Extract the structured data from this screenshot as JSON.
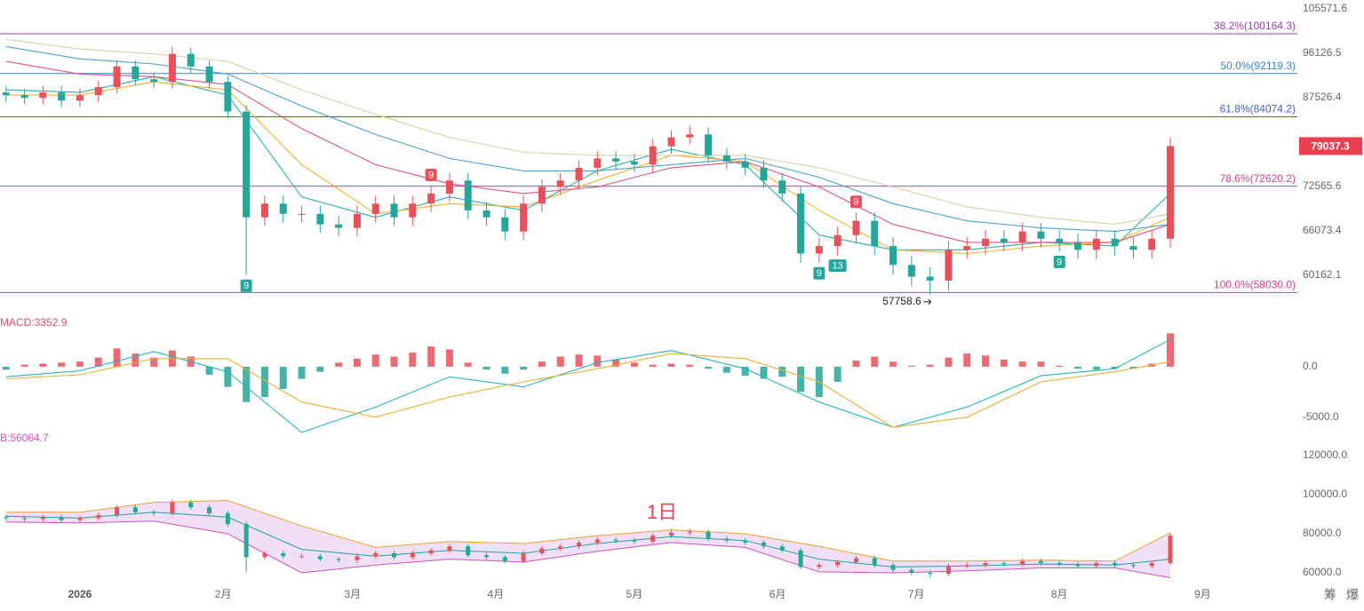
{
  "chart_data": [
    {
      "type": "candlestick",
      "log_scale": true,
      "up_color": "#e8505b",
      "down_color": "#26a69a",
      "xlim": [
        -17.3,
        263.5
      ],
      "ylim": [
        56880,
        107570
      ],
      "yticks": [
        105571.6,
        96126.5,
        87526.4,
        72565.6,
        66073.4,
        60162.1
      ],
      "x": [
        -16,
        -12,
        -8,
        -4,
        0,
        4,
        8,
        12,
        16,
        20,
        24,
        28,
        32,
        36,
        40,
        44,
        48,
        52,
        56,
        60,
        64,
        68,
        72,
        76,
        80,
        84,
        88,
        92,
        96,
        100,
        104,
        108,
        112,
        116,
        120,
        124,
        128,
        132,
        136,
        140,
        144,
        148,
        152,
        156,
        160,
        164,
        168,
        172,
        176,
        180,
        184,
        188,
        192,
        196,
        200,
        204,
        208,
        212,
        216,
        220,
        224,
        228,
        232,
        236
      ],
      "open": [
        88500,
        88000,
        87500,
        88500,
        87000,
        88000,
        89500,
        93500,
        91000,
        90500,
        96000,
        93500,
        90500,
        85000,
        68000,
        70000,
        68500,
        68500,
        67000,
        66500,
        68500,
        70000,
        68000,
        70000,
        71500,
        73500,
        69000,
        68000,
        66000,
        70000,
        72500,
        73500,
        75500,
        77000,
        76500,
        76000,
        79000,
        80500,
        81000,
        77500,
        76500,
        75500,
        73500,
        71500,
        63000,
        64000,
        65500,
        67500,
        64000,
        61500,
        60000,
        59500,
        63500,
        64000,
        65000,
        64500,
        66000,
        65000,
        64500,
        63500,
        65000,
        64000,
        63500,
        65000
      ],
      "high": [
        89700,
        89200,
        89700,
        89700,
        89200,
        90700,
        94700,
        94700,
        92200,
        97500,
        97200,
        94700,
        91700,
        86200,
        71200,
        71200,
        69700,
        69700,
        68200,
        69700,
        71200,
        71200,
        71200,
        72700,
        74700,
        74700,
        70200,
        69200,
        71200,
        73700,
        74700,
        76700,
        78200,
        78200,
        77700,
        80200,
        81700,
        82500,
        82200,
        78700,
        77700,
        76700,
        74700,
        72700,
        65200,
        66700,
        68700,
        68700,
        65200,
        62700,
        61200,
        64700,
        65200,
        66200,
        66200,
        67200,
        67200,
        66200,
        65700,
        66200,
        66200,
        65200,
        66200,
        80500
      ],
      "low": [
        86800,
        86300,
        86300,
        85800,
        85800,
        86800,
        88300,
        89800,
        89300,
        89300,
        92300,
        89300,
        83800,
        60200,
        66800,
        67300,
        67300,
        65800,
        65300,
        65300,
        67300,
        66800,
        66800,
        68800,
        70300,
        67800,
        66800,
        64800,
        64800,
        68800,
        71300,
        72300,
        74300,
        75300,
        74800,
        74800,
        77800,
        79300,
        76300,
        75300,
        74300,
        72300,
        70300,
        61800,
        61800,
        62800,
        64300,
        62800,
        60300,
        58800,
        57758.6,
        58300,
        62300,
        62800,
        63300,
        63300,
        63800,
        63300,
        62300,
        62300,
        62800,
        62300,
        62300,
        63800
      ],
      "close": [
        88000,
        87500,
        88500,
        87000,
        88000,
        89500,
        93500,
        91000,
        90500,
        96000,
        93500,
        90500,
        85000,
        68000,
        70000,
        68500,
        68500,
        67000,
        66500,
        68500,
        70000,
        68000,
        70000,
        71500,
        73500,
        69000,
        68000,
        66000,
        70000,
        72500,
        73500,
        75500,
        77000,
        76500,
        76000,
        79000,
        80500,
        81000,
        77500,
        76500,
        75500,
        73500,
        71500,
        63000,
        64000,
        65500,
        67500,
        64000,
        61500,
        60000,
        59500,
        63500,
        64000,
        65000,
        64500,
        66000,
        65000,
        64500,
        63500,
        65000,
        64000,
        63500,
        65000,
        79037.3
      ],
      "moving_averages": [
        {
          "color": "#2ab0a8",
          "x": [
            -16,
            0,
            16,
            32,
            48,
            64,
            80,
            96,
            112,
            128,
            144,
            160,
            176,
            192,
            208,
            224,
            236
          ],
          "values": [
            89000,
            88500,
            91500,
            88000,
            71000,
            68000,
            71000,
            69000,
            75000,
            78500,
            76000,
            65500,
            63500,
            63500,
            64500,
            64000,
            71500
          ]
        },
        {
          "color": "#f0b030",
          "x": [
            -16,
            0,
            16,
            32,
            48,
            64,
            80,
            96,
            112,
            128,
            144,
            160,
            176,
            192,
            208,
            224,
            236
          ],
          "values": [
            88000,
            88000,
            90500,
            89000,
            76000,
            68500,
            70000,
            69500,
            73500,
            77500,
            76500,
            69000,
            63500,
            63000,
            64000,
            64500,
            68000
          ]
        },
        {
          "color": "#e0508a",
          "x": [
            -16,
            0,
            16,
            32,
            48,
            64,
            80,
            96,
            112,
            128,
            144,
            160,
            176,
            192,
            208,
            224,
            236
          ],
          "values": [
            94500,
            92000,
            91500,
            90000,
            82000,
            76000,
            73000,
            71500,
            72500,
            75500,
            76500,
            72500,
            67000,
            64500,
            64500,
            64500,
            67000
          ]
        },
        {
          "color": "#4aa0d0",
          "x": [
            -16,
            0,
            16,
            32,
            48,
            64,
            80,
            96,
            112,
            128,
            144,
            160,
            176,
            192,
            208,
            224,
            236
          ],
          "values": [
            97500,
            95000,
            94000,
            92000,
            86000,
            81000,
            77000,
            75000,
            75000,
            76000,
            77000,
            74000,
            70000,
            67500,
            66500,
            66000,
            67000
          ]
        },
        {
          "color": "#d8cfa4",
          "x": [
            -16,
            0,
            16,
            32,
            48,
            64,
            80,
            96,
            112,
            128,
            144,
            160,
            176,
            192,
            208,
            224,
            236
          ],
          "values": [
            99000,
            97000,
            96000,
            94500,
            89000,
            84500,
            80500,
            78000,
            77500,
            77500,
            77500,
            75500,
            72500,
            69500,
            68000,
            67000,
            68500
          ]
        }
      ],
      "fib_levels": [
        {
          "value": 100164.3,
          "label": "38.2%(100164.3)",
          "color": "#9b3fa8"
        },
        {
          "value": 92119.3,
          "label": "50.0%(92119.3)",
          "color": "#3f7fc0"
        },
        {
          "value": 84074.2,
          "label": "61.8%(84074.2)",
          "color": "#3f62c0"
        },
        {
          "value": 72620.2,
          "label": "78.6%(72620.2)",
          "color": "#d0408a"
        },
        {
          "value": 58030.0,
          "label": "100.0%(58030.0)",
          "color": "#d0408a"
        }
      ],
      "markers": [
        {
          "x": 36,
          "text": "9",
          "position": "below"
        },
        {
          "x": 76,
          "text": "9",
          "position": "above"
        },
        {
          "x": 160,
          "text": "9",
          "position": "below"
        },
        {
          "x": 164,
          "text": "13",
          "position": "below"
        },
        {
          "x": 168,
          "text": "9",
          "position": "above"
        },
        {
          "x": 212,
          "text": "9",
          "position": "below"
        }
      ],
      "low_label": {
        "x": 184,
        "value": 57758.6
      }
    },
    {
      "type": "macd",
      "title": "MACD:3352.9",
      "xlim": [
        -17.3,
        263.5
      ],
      "ylim": [
        -6600,
        5350
      ],
      "yticks": [
        {
          "value": 0,
          "label": "0.0"
        },
        {
          "value": -5000,
          "label": "-5000.0"
        }
      ],
      "up_color": "#e8505b",
      "down_color": "#26a69a",
      "x": [
        -16,
        -12,
        -8,
        -4,
        0,
        4,
        8,
        12,
        16,
        20,
        24,
        28,
        32,
        36,
        40,
        44,
        48,
        52,
        56,
        60,
        64,
        68,
        72,
        76,
        80,
        84,
        88,
        92,
        96,
        100,
        104,
        108,
        112,
        116,
        120,
        124,
        128,
        132,
        136,
        140,
        144,
        148,
        152,
        156,
        160,
        164,
        168,
        172,
        176,
        180,
        184,
        188,
        192,
        196,
        200,
        204,
        208,
        212,
        216,
        220,
        224,
        228,
        232,
        236
      ],
      "values": [
        -300,
        200,
        300,
        400,
        500,
        900,
        1800,
        1300,
        900,
        1600,
        1000,
        -800,
        -2000,
        -3500,
        -3000,
        -2200,
        -1200,
        -500,
        400,
        800,
        1200,
        1000,
        1400,
        2000,
        1700,
        400,
        -300,
        -700,
        -300,
        500,
        1000,
        1200,
        1100,
        700,
        400,
        200,
        300,
        200,
        -200,
        -600,
        -900,
        -1200,
        -1000,
        -2500,
        -3000,
        -1500,
        600,
        1000,
        500,
        100,
        200,
        900,
        1300,
        1100,
        700,
        500,
        500,
        100,
        -200,
        -300,
        -200,
        -200,
        300,
        3300
      ],
      "series": [
        {
          "color": "#26b5c0",
          "x": [
            -16,
            0,
            16,
            32,
            48,
            64,
            80,
            96,
            112,
            128,
            144,
            160,
            176,
            192,
            208,
            224,
            236
          ],
          "values": [
            -1000,
            -400,
            1500,
            -500,
            -6500,
            -4000,
            -1000,
            -2000,
            400,
            1600,
            -200,
            -3500,
            -6000,
            -4000,
            -900,
            -200,
            2700
          ]
        },
        {
          "color": "#e8b030",
          "x": [
            -16,
            0,
            16,
            32,
            48,
            64,
            80,
            96,
            112,
            128,
            144,
            160,
            176,
            192,
            208,
            224,
            236
          ],
          "values": [
            -1200,
            -800,
            800,
            800,
            -3500,
            -5000,
            -3000,
            -1500,
            -200,
            1300,
            800,
            -1500,
            -6000,
            -5000,
            -1500,
            -500,
            500
          ]
        }
      ]
    },
    {
      "type": "bollinger",
      "title": "B:56064.7",
      "xlim": [
        -17.3,
        263.5
      ],
      "ylim": [
        53180,
        128180
      ],
      "yticks": [
        {
          "value": 120000,
          "label": "120000.0"
        },
        {
          "value": 100000,
          "label": "100000.0"
        },
        {
          "value": 80000,
          "label": "80000.0"
        },
        {
          "value": 60000,
          "label": "60000.0"
        }
      ],
      "xticks": [
        {
          "value": 0,
          "label": "2026"
        },
        {
          "value": 31,
          "label": "2月"
        },
        {
          "value": 59,
          "label": "3月"
        },
        {
          "value": 90,
          "label": "4月"
        },
        {
          "value": 120,
          "label": "5月"
        },
        {
          "value": 151,
          "label": "6月"
        },
        {
          "value": 181,
          "label": "7月"
        },
        {
          "value": 212,
          "label": "8月"
        },
        {
          "value": 243,
          "label": "9月"
        }
      ],
      "annotation": "1日",
      "band_color": "#e6c4ee",
      "series": [
        {
          "color": "#f0a030",
          "x": [
            -16,
            0,
            16,
            32,
            48,
            64,
            80,
            96,
            112,
            128,
            144,
            160,
            176,
            192,
            208,
            224,
            236
          ],
          "values": [
            91000,
            91000,
            96000,
            97000,
            84000,
            73000,
            76000,
            75000,
            79000,
            82000,
            80000,
            73500,
            66000,
            66000,
            66500,
            66000,
            80500
          ]
        },
        {
          "color": "#20a0a0",
          "x": [
            -16,
            0,
            16,
            32,
            48,
            64,
            80,
            96,
            112,
            128,
            144,
            160,
            176,
            192,
            208,
            224,
            236
          ],
          "values": [
            89000,
            88000,
            91000,
            88500,
            72000,
            68500,
            71500,
            70000,
            75000,
            78500,
            76500,
            67000,
            63000,
            63500,
            64500,
            64000,
            67000
          ]
        },
        {
          "color": "#d050c0",
          "x": [
            -16,
            0,
            16,
            32,
            48,
            64,
            80,
            96,
            112,
            128,
            144,
            160,
            176,
            192,
            208,
            224,
            236
          ],
          "values": [
            86000,
            85500,
            86500,
            80000,
            60000,
            64000,
            67000,
            65500,
            71000,
            75500,
            73000,
            60500,
            60000,
            61000,
            62500,
            62500,
            57500
          ]
        }
      ]
    }
  ],
  "toolbar": [
    "筹",
    "爆"
  ]
}
